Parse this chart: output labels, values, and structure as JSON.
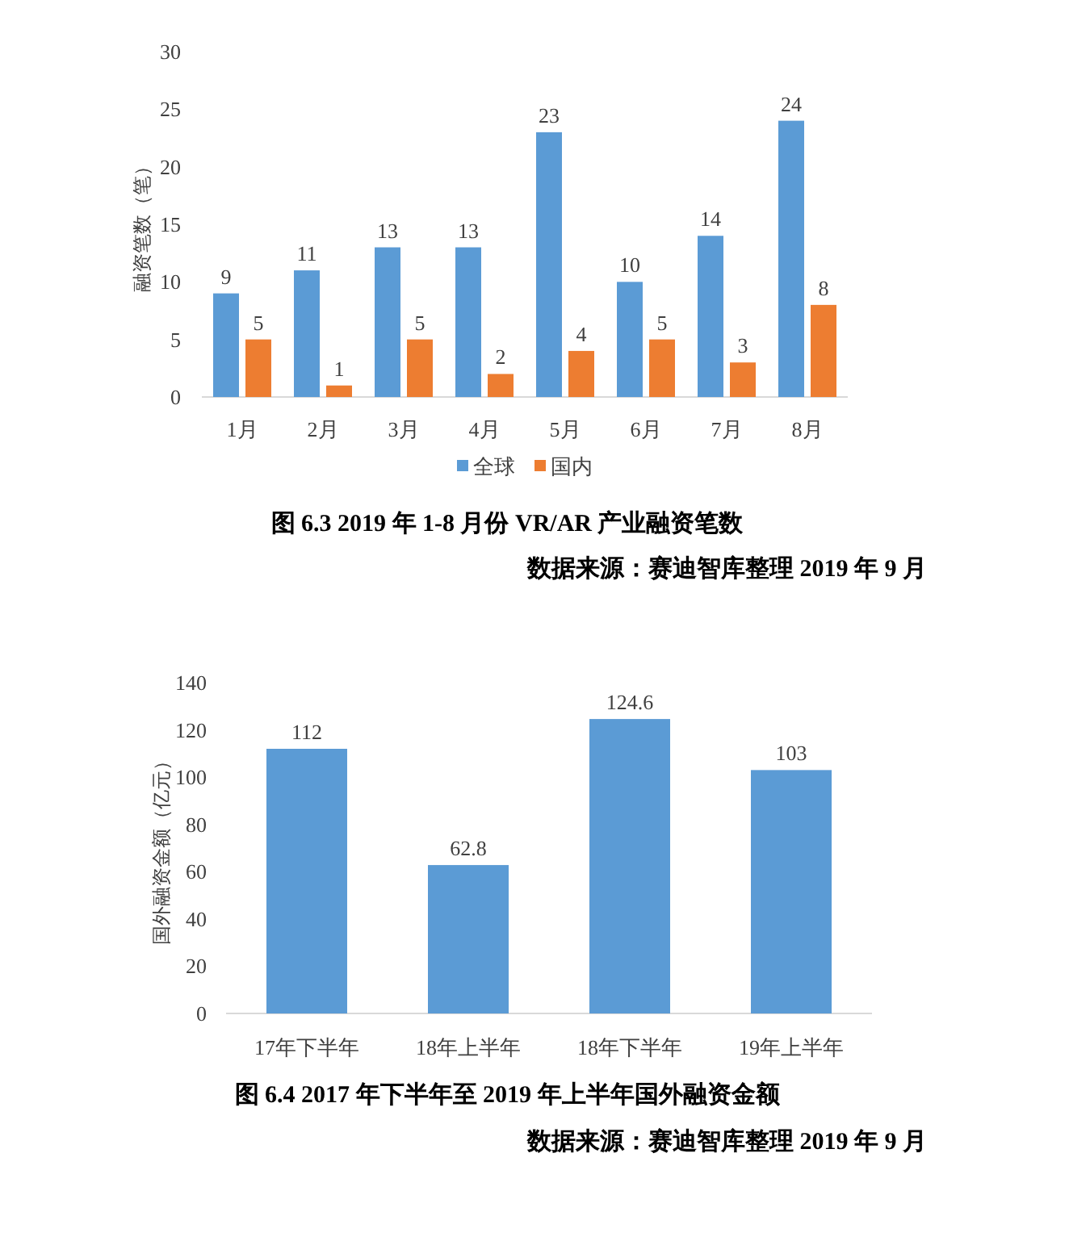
{
  "chart_data": [
    {
      "type": "bar",
      "title": "图 6.3 2019 年 1-8 月份 VR/AR 产业融资笔数",
      "ylabel": "融资笔数（笔）",
      "categories": [
        "1月",
        "2月",
        "3月",
        "4月",
        "5月",
        "6月",
        "7月",
        "8月"
      ],
      "series": [
        {
          "name": "全球",
          "color": "#5b9bd5",
          "values": [
            9,
            11,
            13,
            13,
            23,
            10,
            14,
            24
          ]
        },
        {
          "name": "国内",
          "color": "#ed7d31",
          "values": [
            5,
            1,
            5,
            2,
            4,
            5,
            3,
            8
          ]
        }
      ],
      "ylim": [
        0,
        30
      ],
      "yticks": [
        0,
        5,
        10,
        15,
        20,
        25,
        30
      ],
      "data_labels": true,
      "legend": "bottom",
      "annotations": [
        "数据来源：赛迪智库整理 2019 年 9 月"
      ]
    },
    {
      "type": "bar",
      "title": "图 6.4 2017 年下半年至 2019 年上半年国外融资金额",
      "ylabel": "国外融资金额（亿元）",
      "categories": [
        "17年下半年",
        "18年上半年",
        "18年下半年",
        "19年上半年"
      ],
      "values": [
        112,
        62.8,
        124.6,
        103
      ],
      "color": "#5b9bd5",
      "ylim": [
        0,
        140
      ],
      "yticks": [
        0,
        20,
        40,
        60,
        80,
        100,
        120,
        140
      ],
      "data_labels": true,
      "annotations": [
        "数据来源：赛迪智库整理 2019 年 9 月"
      ]
    }
  ]
}
